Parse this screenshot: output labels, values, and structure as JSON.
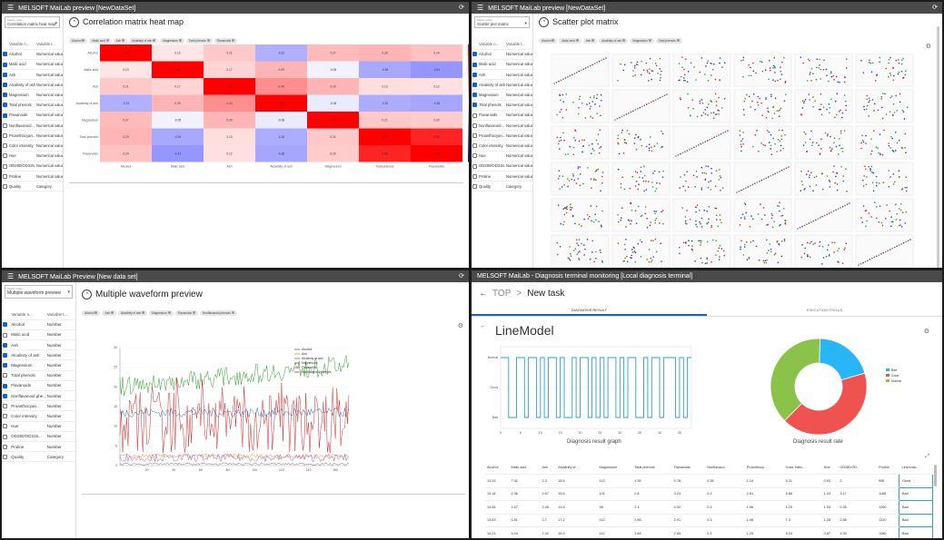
{
  "q1": {
    "title": "MELSOFT MaiLab preview [NewDataSet]",
    "select": {
      "label": "Select mode",
      "value": "Correlation matrix heat map"
    },
    "col_headers": [
      "Variable n...",
      "Variable t..."
    ],
    "variables": [
      {
        "name": "Alcohol",
        "type": "Numerical value",
        "checked": true
      },
      {
        "name": "Malic acid",
        "type": "Numerical value",
        "checked": true
      },
      {
        "name": "Ash",
        "type": "Numerical value",
        "checked": true
      },
      {
        "name": "Alcalinity of ash",
        "type": "Numerical value",
        "checked": true
      },
      {
        "name": "Magnesium",
        "type": "Numerical value",
        "checked": true
      },
      {
        "name": "Total phenols",
        "type": "Numerical value",
        "checked": true
      },
      {
        "name": "Flavanoids",
        "type": "Numerical value",
        "checked": true
      },
      {
        "name": "Nonflavanoid...",
        "type": "Numerical value",
        "checked": false
      },
      {
        "name": "Proanthocyan...",
        "type": "Numerical value",
        "checked": false
      },
      {
        "name": "Color intensity",
        "type": "Numerical value",
        "checked": false
      },
      {
        "name": "Hue",
        "type": "Numerical value",
        "checked": false
      },
      {
        "name": "OD280/OD315...",
        "type": "Numerical value",
        "checked": false
      },
      {
        "name": "Proline",
        "type": "Numerical value",
        "checked": false
      },
      {
        "name": "Quality",
        "type": "Category",
        "checked": false
      }
    ],
    "page_title": "Correlation matrix heat map",
    "chips": [
      "Alcohol",
      "Malic acid",
      "Ash",
      "Alcalinity of ash",
      "Magnesium",
      "Total phenols",
      "Flavanoids"
    ]
  },
  "q2": {
    "title": "MELSOFT MaiLab preview [NewDataSet]",
    "select": {
      "label": "Select mode",
      "value": "Scatter plot matrix"
    },
    "col_headers": [
      "Variable n...",
      "Variable t..."
    ],
    "variables": [
      {
        "name": "Alcohol",
        "type": "Numerical value",
        "checked": true
      },
      {
        "name": "Malic acid",
        "type": "Numerical value",
        "checked": true
      },
      {
        "name": "Ash",
        "type": "Numerical value",
        "checked": true
      },
      {
        "name": "Alcalinity of ash",
        "type": "Numerical value",
        "checked": true
      },
      {
        "name": "Magnesium",
        "type": "Numerical value",
        "checked": true
      },
      {
        "name": "Total phenols",
        "type": "Numerical value",
        "checked": true
      },
      {
        "name": "Flavanoids",
        "type": "Numerical value",
        "checked": false
      },
      {
        "name": "Nonflavanoid...",
        "type": "Numerical value",
        "checked": false
      },
      {
        "name": "Proanthocyan...",
        "type": "Numerical value",
        "checked": false
      },
      {
        "name": "Color intensity",
        "type": "Numerical value",
        "checked": false
      },
      {
        "name": "Hue",
        "type": "Numerical value",
        "checked": false
      },
      {
        "name": "OD280/OD315...",
        "type": "Numerical value",
        "checked": false
      },
      {
        "name": "Proline",
        "type": "Numerical value",
        "checked": false
      },
      {
        "name": "Quality",
        "type": "Category",
        "checked": false
      }
    ],
    "page_title": "Scatter plot matrix",
    "chips": [
      "Alcohol",
      "Malic acid",
      "Ash",
      "Alcalinity of ash",
      "Magnesium",
      "Total phenols"
    ]
  },
  "q3": {
    "title": "MELSOFT MaiLab Preview [New data set]",
    "select": {
      "label": "Select mode",
      "value": "Multiple waveform preview"
    },
    "col_headers": [
      "Variable n...",
      "Variable t..."
    ],
    "variables": [
      {
        "name": "Alcohol",
        "type": "Number",
        "checked": true
      },
      {
        "name": "Malic acid",
        "type": "Number",
        "checked": false
      },
      {
        "name": "Ash",
        "type": "Number",
        "checked": true
      },
      {
        "name": "Alcalinity of ash",
        "type": "Number",
        "checked": true
      },
      {
        "name": "Magnesium",
        "type": "Number",
        "checked": true
      },
      {
        "name": "Total phenols",
        "type": "Number",
        "checked": false
      },
      {
        "name": "Flavanoids",
        "type": "Number",
        "checked": true
      },
      {
        "name": "Nonflavanoid phe...",
        "type": "Number",
        "checked": true
      },
      {
        "name": "Proanthocyan...",
        "type": "Number",
        "checked": false
      },
      {
        "name": "Color intensity",
        "type": "Number",
        "checked": false
      },
      {
        "name": "Hue",
        "type": "Number",
        "checked": false
      },
      {
        "name": "OD280/OD315...",
        "type": "Number",
        "checked": false
      },
      {
        "name": "Proline",
        "type": "Number",
        "checked": false
      },
      {
        "name": "Quality",
        "type": "Category",
        "checked": false
      }
    ],
    "page_title": "Multiple waveform preview",
    "chips": [
      "Alcohol",
      "Ash",
      "Alcalinity of ash",
      "Magnesium",
      "Flavanoids",
      "Nonflavanoid phenols"
    ]
  },
  "q4": {
    "title": "MELSOFT MaiLab  - Diagnosis terminal monitoring [Local diagnosis terminal]",
    "nav": {
      "top": "TOP",
      "sep": ">",
      "task": "New task"
    },
    "tabs": [
      "DIAGNOSIS RESULT",
      "EXECUTION STATUS"
    ],
    "model": "LineModel",
    "graph_caption": "Diagnosis result graph",
    "rate_caption": "Diagnosis result rate",
    "table": {
      "headers": [
        "Alcohol",
        "Malic acid",
        "Ash",
        "Alcalinity of ...",
        "Magnesium",
        "Total phenols",
        "Flavanoids",
        "Nonflavano...",
        "Proanthocy...",
        "Color inten...",
        "Hue",
        "OD280/OD...",
        "Proline",
        "Line/vota..."
      ],
      "rows": [
        [
          "13.33",
          "7.92",
          "2.3",
          "18.5",
          "113",
          "1.35",
          "0.78",
          "0.35",
          "1.14",
          "5.21",
          "0.93",
          "2",
          "995",
          "Good"
        ],
        [
          "13.16",
          "2.36",
          "2.67",
          "18.6",
          "101",
          "2.8",
          "3.24",
          "0.3",
          "2.81",
          "5.68",
          "1.03",
          "3.17",
          "1185",
          "Bad"
        ],
        [
          "13.56",
          "1.67",
          "2.45",
          "15.8",
          "98",
          "2.1",
          "0.32",
          "0.3",
          "1.56",
          "1.25",
          "1.05",
          "0.35",
          "1290",
          "Bad"
        ],
        [
          "13.63",
          "1.81",
          "2.7",
          "17.2",
          "112",
          "2.85",
          "2.91",
          "0.3",
          "1.46",
          "7.3",
          "1.28",
          "2.88",
          "1310",
          "Bad"
        ],
        [
          "14.21",
          "4.04",
          "2.44",
          "18.9",
          "111",
          "2.85",
          "2.65",
          "0.3",
          "1.25",
          "5.24",
          "0.87",
          "3.33",
          "1080",
          "Bad"
        ]
      ]
    }
  },
  "chart_data": [
    {
      "type": "heatmap",
      "title": "Correlation matrix heat map",
      "labels": [
        "Alcohol",
        "Malic acid",
        "Ash",
        "Alcalinity of ash",
        "Magnesium",
        "Total phenols",
        "Flavanoids"
      ],
      "values": [
        [
          1,
          0.1,
          0.21,
          -0.31,
          0.27,
          0.29,
          0.24
        ],
        [
          0.1,
          1,
          0.17,
          0.29,
          -0.05,
          -0.34,
          -0.41
        ],
        [
          0.21,
          0.17,
          1,
          0.44,
          0.29,
          0.13,
          0.12
        ],
        [
          -0.31,
          0.29,
          0.44,
          1,
          -0.08,
          -0.32,
          -0.35
        ],
        [
          0.27,
          -0.05,
          0.29,
          -0.08,
          1,
          0.21,
          0.2
        ],
        [
          0.29,
          -0.34,
          0.13,
          -0.32,
          0.21,
          1,
          0.86
        ],
        [
          0.24,
          -0.41,
          0.12,
          -0.35,
          0.2,
          0.86,
          1
        ]
      ],
      "colorbar": [
        -1,
        1
      ]
    },
    {
      "type": "line",
      "title": "Multiple waveform preview",
      "series": [
        {
          "name": "Alcohol",
          "color": "#1f77b4"
        },
        {
          "name": "Ash",
          "color": "#ff7f0e"
        },
        {
          "name": "Alcalinity of ash",
          "color": "#2ca02c"
        },
        {
          "name": "Magnesium",
          "color": "#d62728"
        },
        {
          "name": "Flavanoids",
          "color": "#9467bd"
        },
        {
          "name": "Nonflavanoid phenols",
          "color": "#8c564b"
        }
      ],
      "x_ticks": [
        20,
        40,
        60,
        80,
        100,
        120,
        140,
        160
      ],
      "y_ticks": [
        0,
        5,
        10,
        15,
        20,
        25,
        30
      ]
    },
    {
      "type": "line",
      "title": "Diagnosis result graph",
      "y_ticks": [
        "Normal",
        "Good",
        "Bad"
      ],
      "x_ticks": [
        0,
        5,
        10,
        15,
        20,
        25,
        30,
        35,
        40,
        45
      ]
    },
    {
      "type": "pie",
      "title": "Diagnosis result rate",
      "slices": [
        {
          "name": "Bad",
          "value": 0.2,
          "color": "#29b6f6"
        },
        {
          "name": "Good",
          "value": 0.42,
          "color": "#ef5350"
        },
        {
          "name": "Normal",
          "value": 0.38,
          "color": "#8bc34a"
        }
      ]
    }
  ]
}
